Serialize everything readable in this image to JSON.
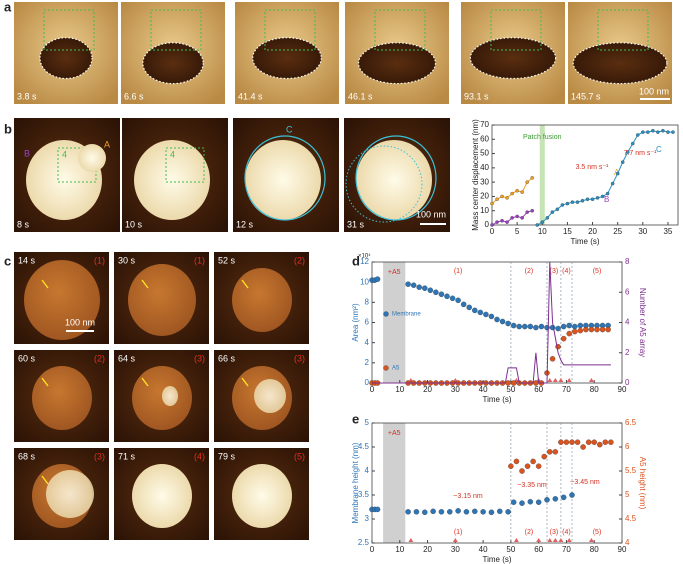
{
  "panel_letters": [
    "a",
    "b",
    "c",
    "d",
    "e"
  ],
  "panel_a": {
    "times": [
      "3.8 s",
      "6.6 s",
      "41.4 s",
      "46.1 s",
      "93.1 s",
      "145.7 s"
    ],
    "scale_bar": "100 nm"
  },
  "panel_b": {
    "times": [
      "8 s",
      "10 s",
      "12 s",
      "31 s"
    ],
    "scale_bar": "100 nm",
    "labels": [
      "A",
      "B",
      "4",
      "4",
      "C"
    ]
  },
  "panel_c": {
    "times": [
      "14 s",
      "30 s",
      "52 s",
      "60 s",
      "64 s",
      "66 s",
      "68 s",
      "71 s",
      "79 s"
    ],
    "phases": [
      "(1)",
      "(1)",
      "(2)",
      "(2)",
      "(3)",
      "(3)",
      "(3)",
      "(4)",
      "(5)"
    ],
    "scale_bar": "100 nm"
  },
  "chart_data": [
    {
      "type": "scatter",
      "xlabel": "Time (s)",
      "ylabel": "Mass center displacement (nm)",
      "xlim": [
        0,
        37
      ],
      "xticks": [
        0,
        5,
        10,
        15,
        20,
        25,
        30,
        35
      ],
      "ylim": [
        0,
        70
      ],
      "yticks": [
        0,
        10,
        20,
        30,
        40,
        50,
        60,
        70
      ],
      "shade": [
        9.5,
        10.5
      ],
      "shade_color": "#c5e3b5",
      "shade_label": "Patch fusion",
      "annotations": [
        "3.5 nm s⁻¹",
        "7.7 nm s⁻¹"
      ],
      "series": [
        {
          "name": "A",
          "color": "#f0a020",
          "x": [
            0,
            1,
            2,
            3,
            4,
            5,
            6,
            7,
            8
          ],
          "values": [
            15,
            18,
            20,
            19,
            22,
            24,
            23,
            30,
            33
          ]
        },
        {
          "name": "B",
          "color": "#9b3fbf",
          "x": [
            0,
            1,
            2,
            3,
            4,
            5,
            6,
            7,
            8
          ],
          "values": [
            0,
            2,
            3,
            2,
            5,
            6,
            5,
            9,
            10
          ]
        },
        {
          "name": "C",
          "color": "#2a8fc0",
          "x": [
            9,
            10,
            11,
            12,
            13,
            14,
            15,
            16,
            17,
            18,
            19,
            20,
            21,
            22,
            23,
            24,
            25,
            26,
            27,
            28,
            29,
            30,
            31,
            32,
            33,
            34,
            35,
            36
          ],
          "values": [
            0,
            2,
            5,
            9,
            11,
            14,
            15,
            16,
            16,
            17,
            18,
            18,
            19,
            20,
            22,
            29,
            36,
            44,
            51,
            57,
            63,
            65,
            65,
            66,
            65,
            66,
            65,
            65
          ]
        }
      ]
    },
    {
      "type": "scatter",
      "xlabel": "Time (s)",
      "ylabel": "Area (nm²)",
      "y2label": "Number of A5 array",
      "multiplier": "×10⁴",
      "xlim": [
        0,
        90
      ],
      "xticks": [
        0,
        10,
        20,
        30,
        40,
        50,
        60,
        70,
        80,
        90
      ],
      "ylim": [
        0,
        12
      ],
      "yticks": [
        0,
        2,
        4,
        6,
        8,
        10,
        12
      ],
      "y2lim": [
        0,
        8
      ],
      "y2ticks": [
        0,
        2,
        4,
        6,
        8
      ],
      "y2color": "#7e2f8e",
      "shade": [
        4,
        12
      ],
      "shade_color": "#d0d0d0",
      "shade_label": "+A5",
      "phase_lines": [
        50,
        63,
        68,
        72
      ],
      "phases": [
        "(1)",
        "(2)",
        "(3)",
        "(4)",
        "(5)"
      ],
      "event_times": [
        14,
        30,
        52,
        60,
        64,
        66,
        68,
        71,
        79
      ],
      "series": [
        {
          "name": "Membrane",
          "color": "#2e75b6",
          "x": [
            0,
            1,
            2,
            13,
            15,
            17,
            19,
            21,
            23,
            25,
            27,
            29,
            31,
            33,
            35,
            37,
            39,
            41,
            43,
            45,
            47,
            49,
            51,
            53,
            55,
            57,
            59,
            61,
            63,
            65,
            67,
            69,
            71,
            73,
            75,
            77,
            79,
            81,
            83,
            85
          ],
          "values": [
            10.2,
            10.2,
            10.3,
            9.8,
            9.7,
            9.5,
            9.4,
            9.2,
            9.0,
            8.8,
            8.6,
            8.4,
            8.2,
            7.8,
            7.5,
            7.2,
            7.0,
            6.8,
            6.6,
            6.3,
            6.1,
            5.9,
            5.7,
            5.6,
            5.6,
            5.6,
            5.5,
            5.6,
            5.5,
            5.5,
            5.4,
            5.6,
            5.7,
            5.6,
            5.7,
            5.7,
            5.7,
            5.7,
            5.7,
            5.7
          ]
        },
        {
          "name": "A5",
          "color": "#d9541e",
          "x": [
            0,
            1,
            2,
            13,
            15,
            17,
            19,
            21,
            23,
            25,
            27,
            29,
            31,
            33,
            35,
            37,
            39,
            41,
            43,
            45,
            47,
            49,
            51,
            53,
            55,
            57,
            59,
            61,
            63,
            65,
            67,
            69,
            71,
            73,
            75,
            77,
            79,
            81,
            83,
            85
          ],
          "values": [
            0,
            0,
            0,
            0,
            0,
            0,
            0,
            0,
            0,
            0,
            0,
            0,
            0,
            0,
            0,
            0,
            0,
            0,
            0,
            0,
            0,
            0,
            0,
            0,
            0,
            0,
            0,
            0,
            1.0,
            2.4,
            3.6,
            4.4,
            4.9,
            5.1,
            5.2,
            5.3,
            5.3,
            5.3,
            5.3,
            5.3
          ]
        },
        {
          "color": "#7e2f8e",
          "axis": "y2",
          "style": "line",
          "x": [
            0,
            48,
            49,
            50,
            52,
            53,
            58,
            59,
            60,
            61,
            63,
            64,
            65,
            66,
            67,
            68,
            69,
            70,
            86
          ],
          "values": [
            0,
            0,
            1,
            1,
            1,
            0,
            0,
            2,
            0,
            0,
            0,
            8,
            4,
            3,
            2,
            1.5,
            1.2,
            1.2,
            1.2
          ]
        }
      ]
    },
    {
      "type": "scatter",
      "xlabel": "Time (s)",
      "ylabel": "Membrane height (nm)",
      "y2label": "A5 height (nm)",
      "xlim": [
        0,
        90
      ],
      "xticks": [
        0,
        10,
        20,
        30,
        40,
        50,
        60,
        70,
        80,
        90
      ],
      "ylim": [
        2.5,
        5
      ],
      "yticks": [
        2.5,
        3,
        3.5,
        4,
        4.5,
        5
      ],
      "y2lim": [
        4,
        6.5
      ],
      "y2ticks": [
        4,
        4.5,
        5,
        5.5,
        6,
        6.5
      ],
      "y2color": "#d9541e",
      "shade": [
        4,
        12
      ],
      "shade_color": "#d0d0d0",
      "shade_label": "+A5",
      "phase_lines": [
        50,
        63,
        68,
        72
      ],
      "phases": [
        "(1)",
        "(2)",
        "(3)",
        "(4)",
        "(5)"
      ],
      "event_times": [
        14,
        30,
        52,
        60,
        64,
        66,
        68,
        71,
        79
      ],
      "annotations": [
        "~3.15 nm",
        "~3.35 nm",
        "~3.45 nm"
      ],
      "series": [
        {
          "color": "#2e75b6",
          "x": [
            0,
            1,
            2,
            13,
            16,
            19,
            22,
            25,
            28,
            31,
            34,
            37,
            40,
            43,
            46,
            49,
            51,
            54,
            57,
            60,
            63,
            66,
            69,
            72
          ],
          "values": [
            3.2,
            3.2,
            3.2,
            3.15,
            3.15,
            3.14,
            3.16,
            3.15,
            3.15,
            3.17,
            3.15,
            3.16,
            3.15,
            3.14,
            3.16,
            3.15,
            3.35,
            3.33,
            3.36,
            3.35,
            3.4,
            3.42,
            3.45,
            3.5
          ]
        },
        {
          "color": "#d9541e",
          "axis": "y2",
          "x": [
            50,
            52,
            54,
            56,
            58,
            60,
            62,
            64,
            66,
            68,
            70,
            72,
            74,
            76,
            78,
            80,
            82,
            84,
            86
          ],
          "values": [
            5.6,
            5.7,
            5.5,
            5.6,
            5.7,
            5.6,
            5.8,
            5.9,
            5.9,
            6.1,
            6.1,
            6.1,
            6.1,
            6.0,
            6.1,
            6.1,
            6.05,
            6.1,
            6.1
          ]
        }
      ]
    }
  ]
}
